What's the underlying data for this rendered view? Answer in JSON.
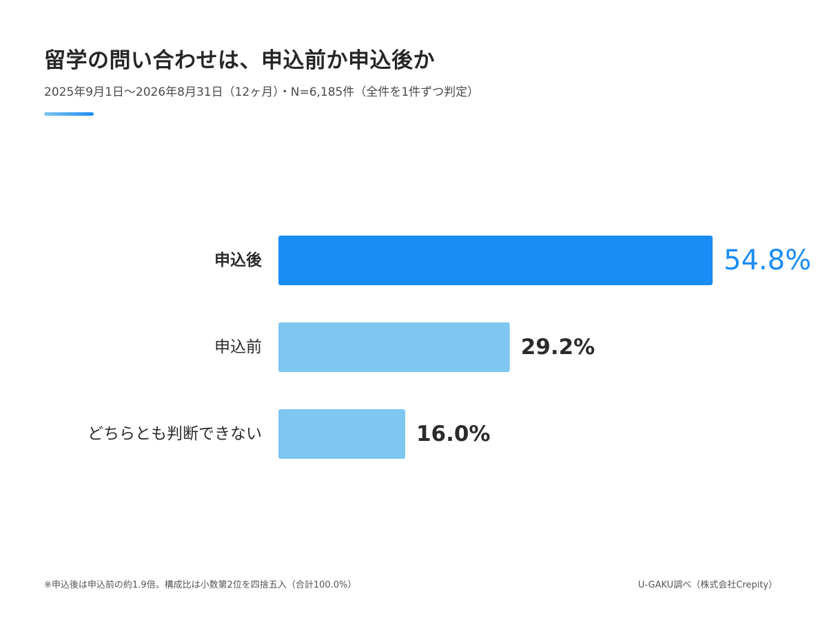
{
  "header": {
    "title": "留学の問い合わせは、申込前か申込後か",
    "subtitle": "2025年9月1日〜2026年8月31日（12ヶ月）・N=6,185件（全件を1件ずつ判定）"
  },
  "footer": {
    "note": "※申込後は申込前の約1.9倍。構成比は小数第2位を四捨五入（合計100.0%）",
    "source": "U-GAKU調べ（株式会社Crepity）"
  },
  "colors": {
    "highlight": "#1a8cf5",
    "secondary": "#7dc7f0",
    "label_text": "#2b2b2b"
  },
  "chart_data": {
    "type": "bar",
    "orientation": "horizontal",
    "categories": [
      "申込後",
      "申込前",
      "どちらとも判断できない"
    ],
    "values": [
      54.8,
      29.2,
      16.0
    ],
    "value_labels": [
      "54.8%",
      "29.2%",
      "16.0%"
    ],
    "highlight_index": 0,
    "unit": "%",
    "xlim": [
      0,
      100
    ],
    "grid": false,
    "legend": "none"
  }
}
